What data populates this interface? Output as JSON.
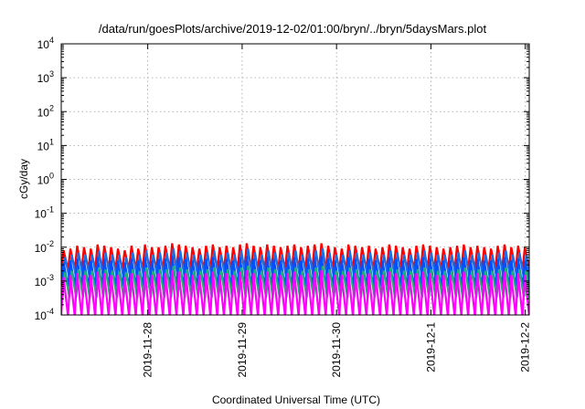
{
  "chart_data": {
    "type": "line",
    "title": "/data/run/goesPlots/archive/2019-12-02/01:00/bryn/../bryn/5daysMars.plot",
    "xlabel": "Coordinated Universal Time (UTC)",
    "ylabel": "cGy/day",
    "yscale": "log",
    "ylim": [
      0.0001,
      10000
    ],
    "xlim": [
      "2019-11-27 02:00",
      "2019-12-02 01:00"
    ],
    "grid": true,
    "legend": "none",
    "y_ticks": [
      {
        "base": "10",
        "exp": "-4"
      },
      {
        "base": "10",
        "exp": "-3"
      },
      {
        "base": "10",
        "exp": "-2"
      },
      {
        "base": "10",
        "exp": "-1"
      },
      {
        "base": "10",
        "exp": "0"
      },
      {
        "base": "10",
        "exp": "1"
      },
      {
        "base": "10",
        "exp": "2"
      },
      {
        "base": "10",
        "exp": "3"
      },
      {
        "base": "10",
        "exp": "4"
      }
    ],
    "x_ticks": [
      "2019-11-28",
      "2019-11-29",
      "2019-11-30",
      "2019-12-1",
      "2019-12-2"
    ],
    "series": [
      {
        "color": "#ff0000",
        "peak": [
          0.008,
          0.009,
          0.011,
          0.01,
          0.009,
          0.012,
          0.011,
          0.01,
          0.009,
          0.008,
          0.011,
          0.009,
          0.012,
          0.01,
          0.01,
          0.011,
          0.013,
          0.012,
          0.011,
          0.01,
          0.009,
          0.011,
          0.012,
          0.01,
          0.011,
          0.01,
          0.012,
          0.013,
          0.011,
          0.01,
          0.012,
          0.011,
          0.01,
          0.011,
          0.012,
          0.01,
          0.011,
          0.012,
          0.013,
          0.011,
          0.01,
          0.009,
          0.012,
          0.011,
          0.01,
          0.011,
          0.009,
          0.01,
          0.012,
          0.011,
          0.01,
          0.009,
          0.011,
          0.012,
          0.011,
          0.01,
          0.009,
          0.01,
          0.011,
          0.012,
          0.01,
          0.011,
          0.01,
          0.009,
          0.011,
          0.012,
          0.01,
          0.011,
          0.01
        ],
        "trough": 0.0022
      },
      {
        "color": "#1f6fe0",
        "peak": [
          0.005,
          0.006,
          0.007,
          0.006,
          0.006,
          0.008,
          0.007,
          0.006,
          0.006,
          0.005,
          0.007,
          0.006,
          0.008,
          0.006,
          0.007,
          0.007,
          0.009,
          0.008,
          0.007,
          0.006,
          0.006,
          0.007,
          0.008,
          0.006,
          0.007,
          0.006,
          0.008,
          0.009,
          0.007,
          0.006,
          0.008,
          0.007,
          0.006,
          0.007,
          0.008,
          0.006,
          0.007,
          0.008,
          0.009,
          0.007,
          0.006,
          0.006,
          0.008,
          0.007,
          0.006,
          0.007,
          0.006,
          0.006,
          0.008,
          0.007,
          0.006,
          0.006,
          0.007,
          0.008,
          0.007,
          0.006,
          0.006,
          0.006,
          0.007,
          0.008,
          0.006,
          0.007,
          0.006,
          0.006,
          0.007,
          0.008,
          0.006,
          0.007,
          0.006
        ],
        "trough": 0.0012
      },
      {
        "color": "#0050ff",
        "peak": [
          0.0035,
          0.004,
          0.0045,
          0.004,
          0.004,
          0.005,
          0.0045,
          0.004,
          0.004,
          0.0035,
          0.0045,
          0.004,
          0.005,
          0.004,
          0.0045,
          0.0045,
          0.0055,
          0.005,
          0.0045,
          0.004,
          0.004,
          0.0045,
          0.005,
          0.004,
          0.0045,
          0.004,
          0.005,
          0.0055,
          0.0045,
          0.004,
          0.005,
          0.0045,
          0.004,
          0.0045,
          0.005,
          0.004,
          0.0045,
          0.005,
          0.0055,
          0.0045,
          0.004,
          0.004,
          0.005,
          0.0045,
          0.004,
          0.0045,
          0.004,
          0.004,
          0.005,
          0.0045,
          0.004,
          0.004,
          0.0045,
          0.005,
          0.0045,
          0.004,
          0.004,
          0.004,
          0.0045,
          0.005,
          0.004,
          0.0045,
          0.004,
          0.004,
          0.0045,
          0.005,
          0.004,
          0.0045,
          0.004
        ],
        "trough": 0.0007
      },
      {
        "color": "#20b070",
        "peak": [
          0.0018,
          0.002,
          0.0022,
          0.002,
          0.002,
          0.0025,
          0.0022,
          0.002,
          0.002,
          0.0018,
          0.0022,
          0.002,
          0.0025,
          0.002,
          0.0022,
          0.0022,
          0.0028,
          0.0025,
          0.0022,
          0.002,
          0.002,
          0.0022,
          0.0025,
          0.002,
          0.0022,
          0.002,
          0.0025,
          0.0028,
          0.0022,
          0.002,
          0.0025,
          0.0022,
          0.002,
          0.0022,
          0.0025,
          0.002,
          0.0022,
          0.0025,
          0.0028,
          0.0022,
          0.002,
          0.002,
          0.0025,
          0.0022,
          0.002,
          0.0022,
          0.002,
          0.002,
          0.0025,
          0.0022,
          0.002,
          0.002,
          0.0022,
          0.0025,
          0.0022,
          0.002,
          0.002,
          0.002,
          0.0022,
          0.0025,
          0.002,
          0.0022,
          0.002,
          0.002,
          0.0022,
          0.0025,
          0.002,
          0.0022,
          0.002
        ],
        "trough": 0.00032
      },
      {
        "color": "#ff00ff",
        "peak": [
          0.0013,
          0.0015,
          0.0017,
          0.0015,
          0.0015,
          0.0019,
          0.0017,
          0.0015,
          0.0015,
          0.0013,
          0.0017,
          0.0015,
          0.0019,
          0.0015,
          0.0017,
          0.0017,
          0.0021,
          0.0019,
          0.0017,
          0.0015,
          0.0015,
          0.0017,
          0.0019,
          0.0015,
          0.0017,
          0.0015,
          0.0019,
          0.0021,
          0.0017,
          0.0015,
          0.0019,
          0.0017,
          0.0015,
          0.0017,
          0.0019,
          0.0015,
          0.0017,
          0.0019,
          0.0021,
          0.0017,
          0.0015,
          0.0015,
          0.0019,
          0.0017,
          0.0015,
          0.0017,
          0.0015,
          0.0015,
          0.0019,
          0.0017,
          0.0015,
          0.0015,
          0.0017,
          0.0019,
          0.0017,
          0.0015,
          0.0015,
          0.0015,
          0.0017,
          0.0019,
          0.0015,
          0.0017,
          0.0015,
          0.0015,
          0.0017,
          0.0019,
          0.0015,
          0.0017,
          0.0015
        ],
        "trough": 9e-05
      }
    ]
  }
}
